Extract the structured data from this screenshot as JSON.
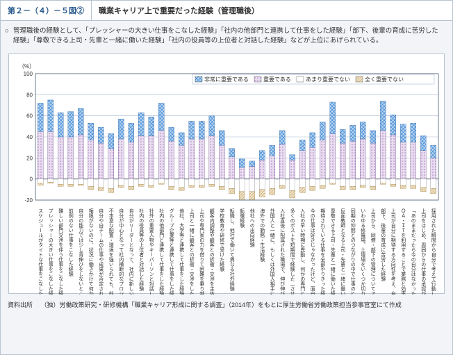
{
  "header": {
    "figure_no": "第２－（４）－５図②",
    "title": "職業キャリア上で重要だった経験（管理職後）"
  },
  "annotation": "管理職後の経験として、「プレッシャーの大きい仕事をこなした経験」「社内の他部門と連携して仕事をした経験」「部下、後輩の育成に苦労した経験」「尊敬できる上司・先輩と一緒に働いた経験」「社内の役員等の上位者と対話した経験」などが上位にあげられている。",
  "chart": {
    "type": "stacked_bar_bipolar",
    "y_label": "（%）",
    "y_max": 100,
    "y_min": -20,
    "y_tick_step": 20,
    "legend": [
      {
        "label": "非常に重要である",
        "fill": "#4a90d9",
        "pattern": "cross"
      },
      {
        "label": "重要である",
        "fill": "#c9a7d8",
        "pattern": "dots"
      },
      {
        "label": "あまり重要でない",
        "fill": "#ffffff",
        "pattern": "none"
      },
      {
        "label": "全く重要でない",
        "fill": "#c9a96e",
        "pattern": "hatch"
      }
    ],
    "background_color": "#ffffff",
    "grid_color": "#aabbd0",
    "axis_color": "#4a5a70",
    "categories": [
      "スケジュールがタイトな仕事をこなした経験",
      "プレッシャーの大きい仕事をこなした経験",
      "難しい部門交渉を伴う仕事をこなした経験",
      "前例のない仕事をこなした経験",
      "自分の能力では少し背伸びをしないとこなせない仕事をこなした経験",
      "権限がないのに、状況に働きかけて何かを動かした経験",
      "自分や自チームの仕事や成果が否定される状況を覆した経験",
      "不本意な配置・環境を強いられても、前向きに取り組んだ経験",
      "自分が中心となって社内横断的なプロジェクト的な仕事をした経験",
      "自分がリーダーとなって、社内に新しいやり方・考え方を導入した経験",
      "社内の役員等の上位者と対話した経験",
      "社外の重要人物やキーパーソンと対話した経験",
      "社内の他部門と連携して仕事をした経験",
      "グループ企業等と連携して仕事をした経験",
      "他社、大学等と連携して仕事をした経験",
      "上司と一緒に顧客との折衝・交渉をした経験",
      "上司や専門家の力を借りて困難を乗り越えた経験",
      "顧客内調整や顧客との折衝・交渉を主体的に担当した経験",
      "学校教育や研修で受けた経験",
      "転職し、他社で働いて異なる社外経験",
      "転職経験",
      "他社への出向経験",
      "海外での勤務・生活経験",
      "外国人と一緒に、もしくは外国人相手に仕事をした経験",
      "入社直後に配属された職場で、伸び伸びと仕事をした経験",
      "多くのポストを短期間で経験した（させられた）経験",
      "入社の早い時期に異動し、何かの専門というキャリアじゃないと気づいた経験",
      "今の仕事は好きじゃなかったけど、面白さが分かってきた経験",
      "期待されている仕事を全部やりきった経験",
      "尊敬できる上司・先輩と一緒に働いた経験",
      "反面教師となる上司・先輩と一緒に働いた経験",
      "同期の仲間とのつながりの中で仕事のヒントを得た経験をもらった経験",
      "いわゆる修羅場、土壇場をいくつか切り抜けた経験",
      "上司から、同僚・部下の管理についてアドバイスを受けた経験",
      "部下、後輩の育成に苦労した経験",
      "上司が自分に期待する方向性を考え、自分の強みを見つめ直した経験",
      "ＯＡ・ＩＴを利用することで業務と効率が向上した経験",
      "「あのままだったら今の自分はなかっただろう」と思うような経験",
      "上司をはじめ、周囲からの仕事の承認が得られなかった経験",
      "採用された瞬間から自分で考えて行動しなくてはならない経験"
    ],
    "series": {
      "very_important": [
        27,
        30,
        23,
        24,
        25,
        16,
        15,
        14,
        19,
        18,
        22,
        18,
        26,
        13,
        12,
        17,
        17,
        19,
        14,
        8,
        8,
        5,
        9,
        10,
        13,
        5,
        10,
        14,
        17,
        30,
        13,
        15,
        16,
        12,
        28,
        19,
        17,
        18,
        14,
        12
      ],
      "important": [
        45,
        45,
        40,
        40,
        42,
        37,
        34,
        29,
        38,
        35,
        41,
        41,
        46,
        36,
        32,
        38,
        38,
        41,
        32,
        21,
        11,
        12,
        18,
        22,
        33,
        18,
        27,
        30,
        37,
        43,
        34,
        36,
        38,
        34,
        46,
        42,
        35,
        35,
        27,
        20
      ],
      "not_much": [
        4,
        3,
        5,
        5,
        5,
        7,
        8,
        9,
        6,
        7,
        5,
        6,
        4,
        7,
        8,
        6,
        6,
        5,
        7,
        9,
        12,
        12,
        10,
        9,
        6,
        11,
        8,
        7,
        6,
        4,
        7,
        7,
        6,
        7,
        4,
        5,
        6,
        6,
        8,
        9
      ],
      "not_at_all": [
        2,
        1,
        2,
        2,
        1,
        3,
        3,
        4,
        2,
        3,
        2,
        2,
        1,
        3,
        3,
        2,
        2,
        2,
        3,
        5,
        8,
        8,
        7,
        6,
        3,
        7,
        5,
        4,
        3,
        1,
        3,
        3,
        2,
        3,
        1,
        2,
        3,
        3,
        4,
        5
      ]
    }
  },
  "source": {
    "label": "資料出所",
    "body": "（独）労働政策研究・研修機構「職業キャリア形成に関する調査」（2014年）をもとに厚生労働省労働政策担当参事官室にて作成"
  }
}
